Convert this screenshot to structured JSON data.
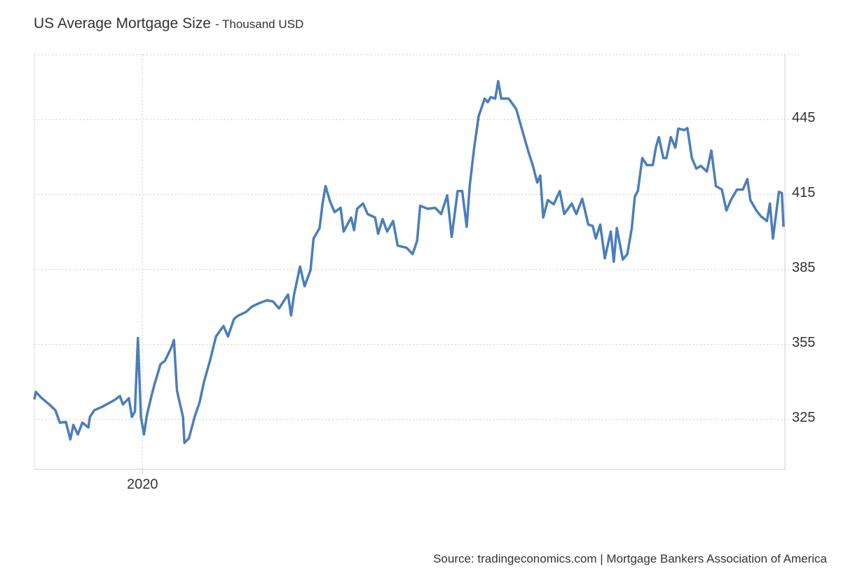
{
  "chart_data": {
    "type": "line",
    "title": "US Average Mortgage Size",
    "subtitle": "- Thousand USD",
    "source": "Source: tradingeconomics.com | Mortgage Bankers Association of America",
    "xlim": [
      2019.28,
      2024.28
    ],
    "xticks": [
      2020
    ],
    "ylim": [
      305,
      471
    ],
    "yticks": [
      325,
      355,
      385,
      415,
      445
    ],
    "grid": true,
    "x": [
      2019.28,
      2019.29,
      2019.33,
      2019.38,
      2019.42,
      2019.45,
      2019.49,
      2019.52,
      2019.54,
      2019.57,
      2019.6,
      2019.64,
      2019.65,
      2019.68,
      2019.73,
      2019.78,
      2019.82,
      2019.85,
      2019.87,
      2019.91,
      2019.93,
      2019.95,
      2019.97,
      2019.99,
      2020.01,
      2020.03,
      2020.06,
      2020.08,
      2020.12,
      2020.15,
      2020.19,
      2020.21,
      2020.23,
      2020.27,
      2020.28,
      2020.31,
      2020.35,
      2020.38,
      2020.41,
      2020.45,
      2020.49,
      2020.54,
      2020.57,
      2020.61,
      2020.64,
      2020.69,
      2020.73,
      2020.78,
      2020.83,
      2020.87,
      2020.91,
      2020.97,
      2020.99,
      2021.01,
      2021.05,
      2021.08,
      2021.12,
      2021.14,
      2021.18,
      2021.2,
      2021.22,
      2021.25,
      2021.28,
      2021.32,
      2021.34,
      2021.39,
      2021.41,
      2021.43,
      2021.47,
      2021.5,
      2021.55,
      2021.57,
      2021.6,
      2021.63,
      2021.67,
      2021.7,
      2021.76,
      2021.8,
      2021.83,
      2021.85,
      2021.9,
      2021.95,
      2021.99,
      2022.03,
      2022.06,
      2022.1,
      2022.13,
      2022.16,
      2022.18,
      2022.21,
      2022.24,
      2022.28,
      2022.3,
      2022.32,
      2022.35,
      2022.37,
      2022.39,
      2022.44,
      2022.49,
      2022.53,
      2022.57,
      2022.6,
      2022.63,
      2022.65,
      2022.67,
      2022.7,
      2022.74,
      2022.78,
      2022.81,
      2022.86,
      2022.89,
      2022.93,
      2022.97,
      2023.0,
      2023.02,
      2023.05,
      2023.08,
      2023.12,
      2023.14,
      2023.16,
      2023.2,
      2023.23,
      2023.26,
      2023.28,
      2023.3,
      2023.33,
      2023.36,
      2023.4,
      2023.42,
      2023.44,
      2023.47,
      2023.49,
      2023.52,
      2023.55,
      2023.57,
      2023.61,
      2023.63,
      2023.66,
      2023.69,
      2023.72,
      2023.76,
      2023.79,
      2023.82,
      2023.86,
      2023.89,
      2023.92,
      2023.96,
      2024.0,
      2024.03,
      2024.05,
      2024.09,
      2024.12,
      2024.16,
      2024.18,
      2024.2,
      2024.24,
      2024.26,
      2024.27
    ],
    "series": [
      {
        "name": "US Average Mortgage Size",
        "color": "#4a7ebb",
        "values": [
          333,
          336,
          333.5,
          331,
          328.7,
          323.7,
          324,
          317,
          322.8,
          319,
          323.7,
          321.8,
          326,
          328.7,
          330,
          331.6,
          333,
          334.4,
          331,
          333.5,
          326,
          328.2,
          357.6,
          326,
          319,
          326.8,
          334.4,
          339,
          347,
          348.5,
          353.4,
          356.8,
          336.6,
          326,
          315.6,
          317.5,
          326.5,
          331.6,
          340,
          348.5,
          358.2,
          362.4,
          358.2,
          365.2,
          366.6,
          368,
          370.2,
          371.6,
          372.7,
          372.2,
          369.4,
          375,
          366.6,
          375,
          386.2,
          378.3,
          384.8,
          397.4,
          401.6,
          411.4,
          418.4,
          412.2,
          408,
          409.7,
          400.2,
          405.8,
          400.7,
          409.3,
          411.4,
          407.2,
          405.8,
          399.3,
          405.2,
          400.2,
          404.4,
          394.6,
          393.7,
          391.2,
          396.5,
          410.5,
          409.3,
          409.7,
          407.2,
          414.7,
          398,
          416.4,
          416.4,
          402.1,
          418.4,
          433.8,
          446.4,
          453.4,
          452,
          454,
          453.4,
          460.4,
          453.4,
          453.4,
          449.2,
          440.8,
          432.4,
          426.8,
          419.8,
          422.6,
          405.8,
          412.8,
          411.1,
          416.4,
          407.2,
          411.4,
          407.2,
          413.3,
          403,
          402.4,
          397.4,
          403,
          389.5,
          400.2,
          388.1,
          401.6,
          389,
          391.2,
          401.6,
          414.2,
          416.4,
          429.6,
          426.8,
          426.8,
          433.8,
          438,
          429.6,
          429.6,
          438,
          433.8,
          441.4,
          440.8,
          441.6,
          429.6,
          425.4,
          426.5,
          424.2,
          432.6,
          418.4,
          417,
          408.6,
          412.8,
          417,
          417,
          421.2,
          412.8,
          408.6,
          406.3,
          404.4,
          411.4,
          397.4,
          416.1,
          415.6,
          402.1
        ]
      }
    ]
  }
}
